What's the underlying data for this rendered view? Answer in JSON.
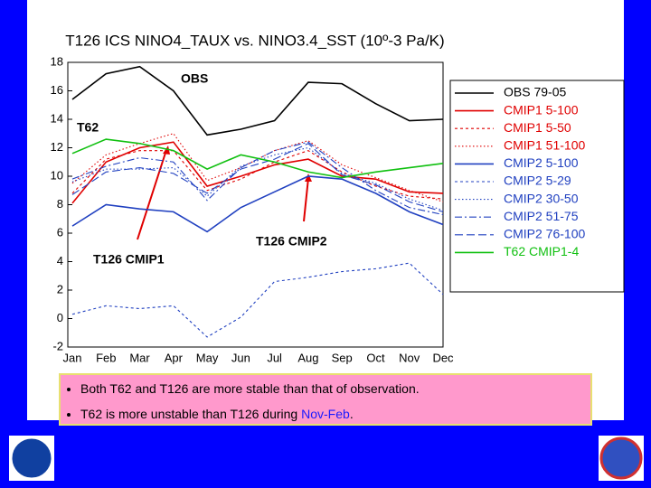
{
  "chart_data": {
    "type": "line",
    "title": "T126 ICS NINO4_TAUX vs. NINO3.4_SST  (10º-3 Pa/K)",
    "categories": [
      "Jan",
      "Feb",
      "Mar",
      "Apr",
      "May",
      "Jun",
      "Jul",
      "Aug",
      "Sep",
      "Oct",
      "Nov",
      "Dec"
    ],
    "ylim": [
      -2,
      18
    ],
    "yticks": [
      -2,
      0,
      2,
      4,
      6,
      8,
      10,
      12,
      14,
      16,
      18
    ],
    "series": [
      {
        "name": "OBS 79-05",
        "color": "#000000",
        "dash": "solid",
        "values": [
          15.4,
          17.2,
          17.7,
          16.0,
          12.9,
          13.3,
          13.9,
          16.6,
          16.5,
          15.1,
          13.9,
          14.0
        ]
      },
      {
        "name": "CMIP1 5-100",
        "color": "#e00000",
        "dash": "solid",
        "values": [
          8.1,
          11.0,
          12.0,
          12.4,
          9.3,
          10.0,
          10.8,
          11.2,
          10.0,
          9.8,
          8.9,
          8.8
        ]
      },
      {
        "name": "CMIP1 5-50",
        "color": "#e00000",
        "dash": "dashed",
        "values": [
          8.8,
          11.2,
          11.8,
          11.8,
          9.0,
          9.8,
          11.0,
          11.8,
          10.3,
          9.3,
          8.6,
          8.4
        ]
      },
      {
        "name": "CMIP1 51-100",
        "color": "#e00000",
        "dash": "dotted",
        "values": [
          9.5,
          11.5,
          12.3,
          13.0,
          9.7,
          10.6,
          11.8,
          12.5,
          10.8,
          9.9,
          9.0,
          8.2
        ]
      },
      {
        "name": "CMIP2 5-100",
        "color": "#2040c0",
        "dash": "solid",
        "values": [
          6.5,
          8.0,
          7.7,
          7.5,
          6.1,
          7.8,
          8.9,
          10.0,
          9.8,
          8.8,
          7.5,
          6.6
        ]
      },
      {
        "name": "CMIP2 5-29",
        "color": "#2040c0",
        "dash": "dashed",
        "values": [
          0.3,
          0.9,
          0.7,
          0.9,
          -1.3,
          0.1,
          2.6,
          2.9,
          3.3,
          3.5,
          3.9,
          1.7
        ]
      },
      {
        "name": "CMIP2 30-50",
        "color": "#2040c0",
        "dash": "dotted",
        "values": [
          9.6,
          10.5,
          10.5,
          10.6,
          8.6,
          10.7,
          11.5,
          12.0,
          10.2,
          9.5,
          8.4,
          7.6
        ]
      },
      {
        "name": "CMIP2 51-75",
        "color": "#2040c0",
        "dash": "dashdot",
        "values": [
          9.8,
          10.7,
          11.3,
          11.0,
          8.3,
          10.6,
          11.8,
          12.4,
          10.6,
          9.0,
          7.8,
          7.3
        ]
      },
      {
        "name": "CMIP2 76-100",
        "color": "#2040c0",
        "dash": "longdash",
        "values": [
          8.7,
          10.3,
          10.6,
          10.2,
          8.8,
          10.5,
          11.2,
          12.3,
          10.1,
          9.4,
          8.2,
          7.5
        ]
      },
      {
        "name": "T62 CMIP1-4",
        "color": "#10c010",
        "dash": "solid",
        "values": [
          11.6,
          12.6,
          12.3,
          11.8,
          10.5,
          11.5,
          11.0,
          10.3,
          9.9,
          10.3,
          10.6,
          10.9
        ]
      }
    ],
    "annotations": [
      "OBS",
      "T62",
      "T126 CMIP1",
      "T126 CMIP2"
    ]
  },
  "bullets": [
    {
      "text": "Both T62 and T126 are more stable than that of observation."
    },
    {
      "text": "T62 is more unstable than T126 during ",
      "highlight": "Nov-Feb",
      "end": "."
    }
  ]
}
